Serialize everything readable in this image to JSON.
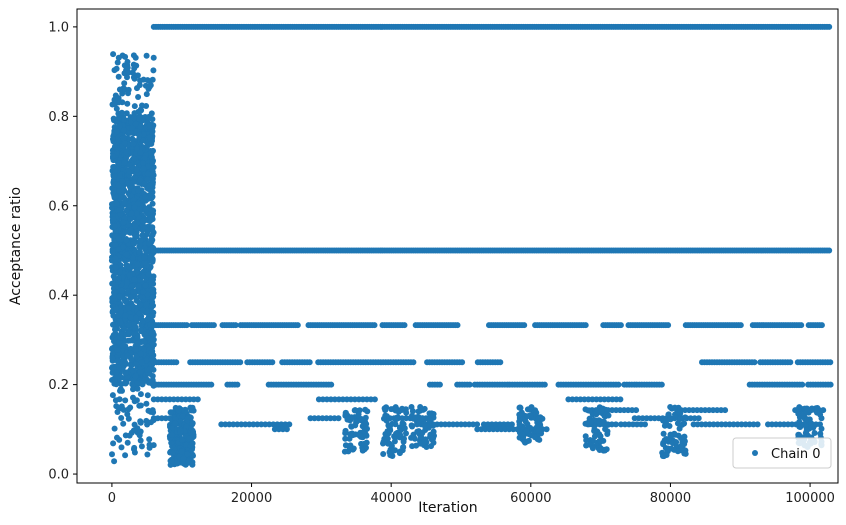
{
  "chart_data": {
    "type": "scatter",
    "title": "",
    "xlabel": "Iteration",
    "ylabel": "Acceptance ratio",
    "xlim": [
      -5000,
      104000
    ],
    "ylim": [
      -0.02,
      1.04
    ],
    "xticks": [
      0,
      20000,
      40000,
      60000,
      80000,
      100000
    ],
    "xtick_labels": [
      "0",
      "20000",
      "40000",
      "60000",
      "80000",
      "100000"
    ],
    "yticks": [
      0.0,
      0.2,
      0.4,
      0.6,
      0.8,
      1.0
    ],
    "ytick_labels": [
      "0.0",
      "0.2",
      "0.4",
      "0.6",
      "0.8",
      "1.0"
    ],
    "grid": false,
    "legend": {
      "position": "bottom-right",
      "entries": [
        "Chain 0"
      ]
    },
    "series": [
      {
        "name": "Chain 0",
        "color": "#1f77b4",
        "marker": "circle",
        "description_points": {
          "burn_in": {
            "x_range": [
              0,
              6000
            ],
            "y_range": [
              0.02,
              0.94
            ],
            "dense_band": [
              0.2,
              0.8
            ]
          },
          "levels": [
            1.0,
            0.5,
            0.333,
            0.25,
            0.2,
            0.167,
            0.143,
            0.125,
            0.111,
            0.1
          ],
          "level_x_range": [
            6000,
            103000
          ],
          "sparse_dips": [
            {
              "x": 10000,
              "min_y": 0.02
            },
            {
              "x": 35000,
              "min_y": 0.05
            },
            {
              "x": 40500,
              "min_y": 0.04
            },
            {
              "x": 44500,
              "min_y": 0.06
            },
            {
              "x": 60000,
              "min_y": 0.07
            },
            {
              "x": 69500,
              "min_y": 0.05
            },
            {
              "x": 80500,
              "min_y": 0.04
            },
            {
              "x": 100000,
              "min_y": 0.06
            }
          ]
        }
      }
    ]
  }
}
